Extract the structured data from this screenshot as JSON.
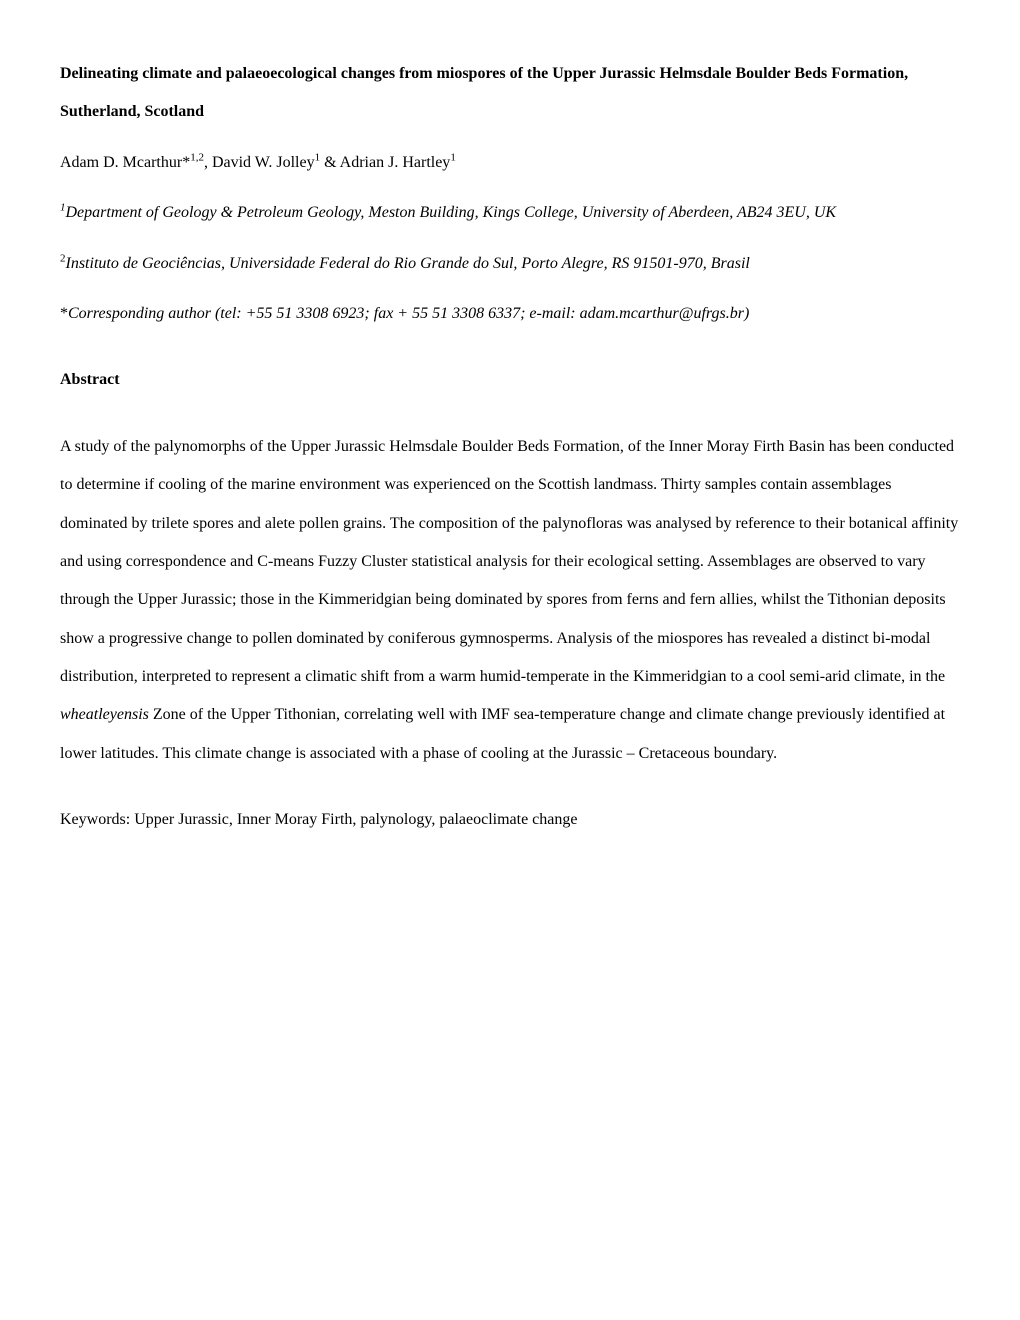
{
  "title": "Delineating climate and palaeoecological changes from miospores of the Upper Jurassic Helmsdale Boulder Beds Formation, Sutherland, Scotland",
  "authors": {
    "a1_name": "Adam D. Mcarthur*",
    "a1_sup": "1,2",
    "sep1": ", ",
    "a2_name": "David W. Jolley",
    "a2_sup": "1",
    "sep2": " & ",
    "a3_name": "Adrian J. Hartley",
    "a3_sup": "1"
  },
  "affiliation1": {
    "sup": "1",
    "text": "Department of Geology & Petroleum Geology, Meston Building, Kings College, University of Aberdeen, AB24 3EU, UK"
  },
  "affiliation2": {
    "sup": "2",
    "text": "Instituto de Geociências, Universidade Federal do Rio Grande do Sul, Porto Alegre, RS 91501-970, Brasil"
  },
  "corresponding": {
    "asterisk": "*",
    "text": "Corresponding author (tel: +55 51 3308 6923; fax + 55 51 3308 6337; e-mail: adam.mcarthur@ufrgs.br)"
  },
  "abstract_heading": "Abstract",
  "abstract_body": {
    "p1a": "A study of the palynomorphs of the Upper Jurassic Helmsdale Boulder Beds Formation, of the Inner Moray Firth Basin has been conducted to determine if cooling of the marine environment was experienced on the Scottish landmass. Thirty samples contain assemblages dominated by trilete spores and alete pollen grains. The composition of the palynofloras was analysed by reference to their botanical affinity and using correspondence and C-means Fuzzy Cluster statistical analysis for their ecological setting. Assemblages are observed to vary through the Upper Jurassic; those in the Kimmeridgian being dominated by spores from ferns and fern allies, whilst the Tithonian deposits show a progressive change to pollen dominated by coniferous gymnosperms. Analysis of the miospores has revealed a distinct bi-modal distribution, interpreted to represent a climatic shift from a warm humid-temperate in the Kimmeridgian to a cool semi-arid climate, in the ",
    "italic": "wheatleyensis",
    "p1b": " Zone of the Upper Tithonian, correlating well with IMF sea-temperature change and climate change previously identified at lower latitudes. This climate change is associated with a phase of cooling at the Jurassic – Cretaceous boundary."
  },
  "keywords": "Keywords: Upper Jurassic, Inner Moray Firth, palynology, palaeoclimate change"
}
